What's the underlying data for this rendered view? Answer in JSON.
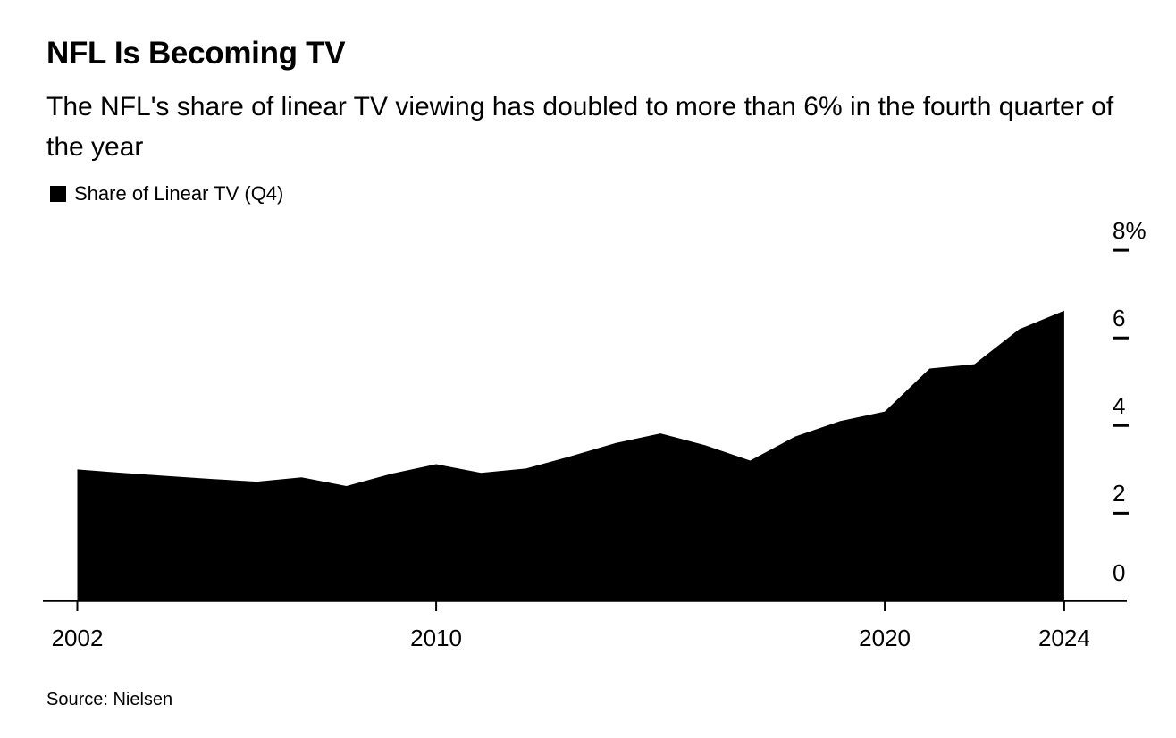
{
  "chart_data": {
    "type": "area",
    "title": "NFL Is Becoming TV",
    "subtitle": "The NFL's share of linear TV viewing has doubled to more than 6% in the fourth quarter of the year",
    "legend": [
      {
        "label": "Share of Linear TV (Q4)",
        "color": "#000000"
      }
    ],
    "source": "Source: Nielsen",
    "x": [
      2002,
      2003,
      2004,
      2005,
      2006,
      2007,
      2008,
      2009,
      2010,
      2011,
      2012,
      2013,
      2014,
      2015,
      2016,
      2017,
      2018,
      2019,
      2020,
      2021,
      2022,
      2023,
      2024
    ],
    "series": [
      {
        "name": "Share of Linear TV (Q4)",
        "values": [
          3.0,
          2.92,
          2.85,
          2.78,
          2.72,
          2.82,
          2.62,
          2.9,
          3.12,
          2.92,
          3.02,
          3.3,
          3.6,
          3.82,
          3.55,
          3.2,
          3.75,
          4.1,
          4.32,
          5.3,
          5.4,
          6.2,
          6.62
        ]
      }
    ],
    "xlabel": "",
    "ylabel": "",
    "xlim": [
      2002,
      2024
    ],
    "ylim": [
      0,
      8
    ],
    "x_ticks": [
      {
        "value": 2002,
        "label": "2002"
      },
      {
        "value": 2010,
        "label": "2010"
      },
      {
        "value": 2020,
        "label": "2020"
      },
      {
        "value": 2024,
        "label": "2024"
      }
    ],
    "y_ticks": [
      {
        "value": 0,
        "label": "0"
      },
      {
        "value": 2,
        "label": "2"
      },
      {
        "value": 4,
        "label": "4"
      },
      {
        "value": 6,
        "label": "6"
      },
      {
        "value": 8,
        "label": "8%"
      }
    ],
    "grid": false,
    "legend_position": "top-left",
    "y_axis_side": "right",
    "fill_color": "#000000",
    "axis_color": "#000000",
    "background_color": "#ffffff"
  }
}
